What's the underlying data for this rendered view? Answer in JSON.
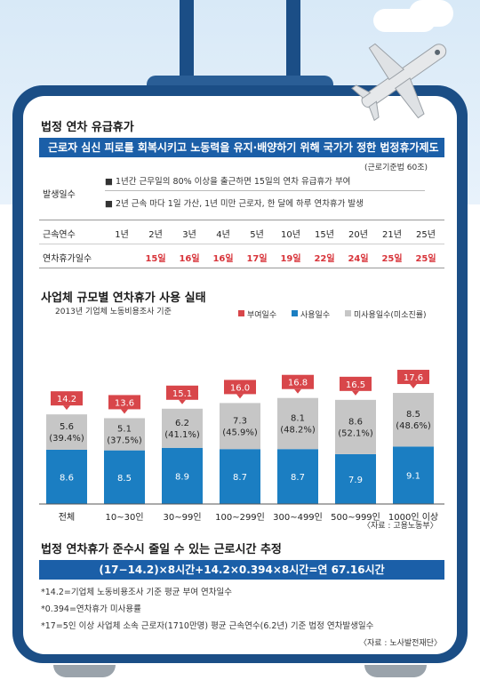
{
  "title1": "법정 연차 유급휴가",
  "banner1": "근로자 심신 피로를 회복시키고 노동력을 유지·배양하기 위해 국가가 정한 법정휴가제도",
  "law_ref": "(근로기준법 60조)",
  "occurrence": {
    "label": "발생일수",
    "items": [
      "1년간 근무일의 80% 이상을 출근하면 15일의 연차 유급휴가 부여",
      "2년 근속 마다 1일 가산, 1년 미만 근로자, 한 달에 하루 연차휴가 발생"
    ]
  },
  "tenure_table": {
    "row1_label": "근속연수",
    "row2_label": "연차휴가일수",
    "years": [
      "1년",
      "2년",
      "3년",
      "4년",
      "5년",
      "10년",
      "15년",
      "20년",
      "21년",
      "25년"
    ],
    "days": [
      "",
      "15일",
      "16일",
      "16일",
      "17일",
      "19일",
      "22일",
      "24일",
      "25일",
      "25일"
    ]
  },
  "title2": "사업체 규모별 연차휴가 사용 실태",
  "subtitle2": "2013년 기업체 노동비용조사 기준",
  "chart_data": {
    "type": "bar",
    "stacked": true,
    "categories": [
      "전체",
      "10~30인",
      "30~99인",
      "100~299인",
      "300~499인",
      "500~999인",
      "1000인 이상"
    ],
    "series": [
      {
        "name": "사용일수",
        "values": [
          8.6,
          8.5,
          8.9,
          8.7,
          8.7,
          7.9,
          9.1
        ],
        "color": "#1b7ec2"
      },
      {
        "name": "미사용일수(미소진률)",
        "values": [
          5.6,
          5.1,
          6.2,
          7.3,
          8.1,
          8.6,
          8.5
        ],
        "labels": [
          "(39.4%)",
          "(37.5%)",
          "(41.1%)",
          "(45.9%)",
          "(48.2%)",
          "(52.1%)",
          "(48.6%)"
        ],
        "color": "#c6c6c6"
      },
      {
        "name": "부여일수",
        "values": [
          14.2,
          13.6,
          15.1,
          16.0,
          16.8,
          16.5,
          17.6
        ],
        "color": "#d8464a"
      }
    ],
    "legend_position": "top-right",
    "source": "〈자료 : 고용노동부〉"
  },
  "title3": "법정 연차휴가 준수시 줄일 수 있는 근로시간 추정",
  "formula": "(17−14.2)×8시간+14.2×0.394×8시간=연 67.16시간",
  "notes": [
    "*14.2=기업체 노동비용조사 기준 평균 부여 연차일수",
    "*0.394=연차휴가 미사용률",
    "*17=5인 이상 사업체 소속 근로자(1710만명) 평균 근속연수(6.2년) 기준 법정 연차발생일수"
  ],
  "source2": "〈자료 : 노사발전재단〉",
  "colors": {
    "navy": "#1b4e86",
    "blue": "#1b5fa8",
    "red": "#d8343a",
    "gray": "#c6c6c6"
  }
}
